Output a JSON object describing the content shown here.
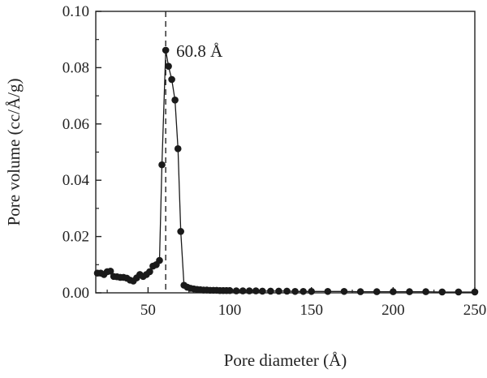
{
  "chart_data": {
    "type": "line",
    "xlabel": "Pore diameter (Å)",
    "ylabel": "Pore volume (cc/Å/g)",
    "xlim": [
      18,
      250
    ],
    "ylim": [
      0,
      0.1
    ],
    "x_ticks": [
      50,
      100,
      150,
      200,
      250
    ],
    "y_ticks": [
      0.0,
      0.02,
      0.04,
      0.06,
      0.08,
      0.1
    ],
    "y_tick_labels": [
      "0.00",
      "0.02",
      "0.04",
      "0.06",
      "0.08",
      "0.10"
    ],
    "x_tick_labels": [
      "50",
      "100",
      "150",
      "200",
      "250"
    ],
    "grid": false,
    "marker": "circle",
    "colors": {
      "series": "#1a1a1a",
      "axis": "#222222"
    },
    "annotation": {
      "text": "60.8 Å",
      "x": 60.8
    },
    "series": [
      {
        "x": [
          19,
          21,
          23,
          25,
          27,
          29,
          31,
          33,
          35,
          37,
          39,
          41,
          43,
          45,
          47,
          49,
          51,
          53,
          55,
          57,
          58.5,
          60.8,
          62.5,
          64.5,
          66.5,
          68.3,
          70,
          72,
          74,
          76,
          78,
          80,
          82,
          84,
          86,
          88,
          90,
          92,
          94,
          96,
          98,
          100,
          104,
          108,
          112,
          116,
          120,
          125,
          130,
          135,
          140,
          145,
          150,
          160,
          170,
          180,
          190,
          200,
          210,
          220,
          230,
          240,
          250
        ],
        "y": [
          0.007,
          0.007,
          0.0065,
          0.0075,
          0.0077,
          0.0058,
          0.0057,
          0.0055,
          0.0055,
          0.0052,
          0.0045,
          0.0042,
          0.0053,
          0.0065,
          0.0058,
          0.0065,
          0.0075,
          0.0095,
          0.01,
          0.0115,
          0.0455,
          0.0862,
          0.0805,
          0.0758,
          0.0685,
          0.0512,
          0.0218,
          0.0027,
          0.002,
          0.0016,
          0.0014,
          0.0012,
          0.0011,
          0.001,
          0.001,
          0.0009,
          0.0009,
          0.0009,
          0.0008,
          0.0008,
          0.0008,
          0.0008,
          0.0007,
          0.0007,
          0.0007,
          0.0007,
          0.0006,
          0.0006,
          0.0006,
          0.0006,
          0.0005,
          0.0005,
          0.0005,
          0.0005,
          0.0005,
          0.0004,
          0.0004,
          0.0004,
          0.0004,
          0.0004,
          0.0003,
          0.0003,
          0.0003
        ]
      }
    ]
  }
}
